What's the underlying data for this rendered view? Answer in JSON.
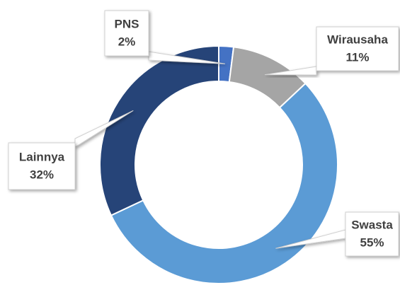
{
  "chart_data": {
    "type": "donut",
    "categories": [
      "PNS",
      "Wirausaha",
      "Swasta",
      "Lainnya"
    ],
    "values": [
      2,
      11,
      55,
      32
    ],
    "value_labels": [
      "2%",
      "11%",
      "55%",
      "32%"
    ],
    "colors": [
      "#4472c4",
      "#a5a5a5",
      "#5b9bd5",
      "#264478"
    ]
  }
}
